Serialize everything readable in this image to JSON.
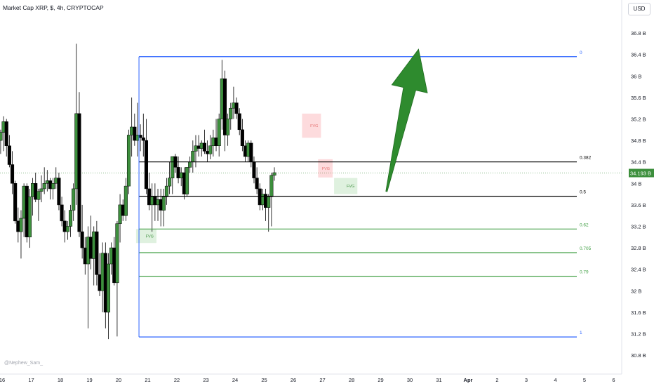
{
  "header": {
    "title": "Market Cap XRP, $, 4h, CRYPTOCAP",
    "currency": "USD"
  },
  "watermark": "@Nephew_Sam_",
  "chart_data": {
    "type": "candlestick",
    "ylim": [
      30.6,
      37.1
    ],
    "yticks": [
      "36.8 B",
      "36.4 B",
      "36 B",
      "35.6 B",
      "35.2 B",
      "34.8 B",
      "34.4 B",
      "34 B",
      "33.6 B",
      "33.2 B",
      "32.8 B",
      "32.4 B",
      "32 B",
      "31.6 B",
      "31.2 B",
      "30.8 B"
    ],
    "ytick_values": [
      36.8,
      36.4,
      36.0,
      35.6,
      35.2,
      34.8,
      34.4,
      34.0,
      33.6,
      33.2,
      32.8,
      32.4,
      32.0,
      31.6,
      31.2,
      30.8
    ],
    "xticks": [
      "16",
      "17",
      "18",
      "19",
      "20",
      "21",
      "22",
      "23",
      "24",
      "25",
      "26",
      "27",
      "28",
      "29",
      "30",
      "31",
      "Apr",
      "2",
      "3",
      "4",
      "5",
      "6"
    ],
    "last_price": {
      "label": "34.193 B",
      "value": 34.193
    },
    "fib_levels": [
      {
        "label": "0",
        "value": 36.36,
        "color": "#2962ff"
      },
      {
        "label": "0.382",
        "value": 34.4,
        "color": "#000000"
      },
      {
        "label": "0.5",
        "value": 33.76,
        "color": "#000000"
      },
      {
        "label": "0.62",
        "value": 33.15,
        "color": "#43a047"
      },
      {
        "label": "0.705",
        "value": 32.71,
        "color": "#43a047"
      },
      {
        "label": "0.79",
        "value": 32.27,
        "color": "#43a047"
      },
      {
        "label": "1",
        "value": 31.14,
        "color": "#2962ff"
      }
    ],
    "fvg_zones": [
      {
        "label": "FVG",
        "x0": 20.6,
        "x1": 21.3,
        "y0": 32.89,
        "y1": 33.15,
        "type": "bullish"
      },
      {
        "label": "FVG",
        "x0": 26.3,
        "x1": 26.95,
        "y0": 34.85,
        "y1": 35.3,
        "type": "bearish"
      },
      {
        "label": "FVG",
        "x0": 26.85,
        "x1": 27.35,
        "y0": 34.11,
        "y1": 34.45,
        "type": "bearish"
      },
      {
        "label": "FVG",
        "x0": 27.4,
        "x1": 28.2,
        "y0": 33.8,
        "y1": 34.1,
        "type": "bullish"
      }
    ],
    "arrow": {
      "from": [
        29.2,
        33.85
      ],
      "to": [
        30.3,
        36.5
      ],
      "color": "#2e8b2e"
    },
    "colors": {
      "up": "#3d8f3d",
      "down": "#000000",
      "wick": "#000000"
    },
    "candles": [
      [
        15.85,
        35.1,
        35.35,
        34.7,
        34.8
      ],
      [
        15.95,
        34.8,
        35.0,
        34.55,
        34.95
      ],
      [
        16.05,
        34.95,
        35.25,
        34.6,
        35.15
      ],
      [
        16.15,
        35.15,
        35.2,
        34.5,
        34.7
      ],
      [
        16.25,
        34.7,
        34.9,
        34.3,
        34.35
      ],
      [
        16.35,
        34.35,
        34.6,
        33.8,
        34.0
      ],
      [
        16.45,
        34.0,
        34.05,
        33.25,
        33.3
      ],
      [
        16.55,
        33.3,
        33.55,
        32.9,
        33.1
      ],
      [
        16.65,
        33.1,
        33.5,
        32.6,
        33.35
      ],
      [
        16.75,
        33.35,
        34.0,
        33.0,
        33.95
      ],
      [
        16.85,
        33.95,
        34.0,
        32.9,
        33.0
      ],
      [
        16.95,
        33.0,
        33.9,
        32.8,
        33.75
      ],
      [
        17.05,
        33.75,
        34.1,
        33.4,
        34.0
      ],
      [
        17.15,
        34.0,
        34.2,
        33.65,
        33.7
      ],
      [
        17.25,
        33.7,
        33.9,
        33.3,
        33.85
      ],
      [
        17.35,
        33.85,
        34.15,
        33.65,
        33.9
      ],
      [
        17.45,
        33.9,
        34.3,
        33.8,
        34.0
      ],
      [
        17.55,
        34.0,
        34.25,
        33.85,
        34.05
      ],
      [
        17.65,
        34.05,
        34.1,
        33.7,
        33.9
      ],
      [
        17.75,
        33.9,
        34.1,
        33.7,
        34.0
      ],
      [
        17.85,
        34.0,
        34.3,
        33.9,
        34.1
      ],
      [
        17.95,
        34.1,
        34.2,
        33.5,
        33.6
      ],
      [
        18.05,
        33.6,
        33.75,
        33.2,
        33.3
      ],
      [
        18.15,
        33.3,
        33.5,
        32.9,
        33.1
      ],
      [
        18.25,
        33.1,
        33.3,
        32.95,
        33.2
      ],
      [
        18.35,
        33.2,
        33.6,
        33.0,
        33.5
      ],
      [
        18.45,
        33.5,
        34.0,
        33.3,
        33.9
      ],
      [
        18.55,
        33.9,
        36.6,
        33.6,
        35.3
      ],
      [
        18.65,
        35.3,
        35.7,
        33.0,
        33.1
      ],
      [
        18.75,
        33.1,
        33.6,
        32.6,
        32.8
      ],
      [
        18.85,
        32.8,
        33.0,
        32.3,
        32.5
      ],
      [
        18.95,
        32.5,
        33.2,
        31.3,
        33.0
      ],
      [
        19.05,
        33.0,
        33.4,
        32.4,
        32.6
      ],
      [
        19.15,
        32.6,
        33.2,
        32.1,
        33.1
      ],
      [
        19.25,
        33.1,
        33.3,
        32.1,
        32.3
      ],
      [
        19.35,
        32.3,
        32.7,
        31.9,
        32.0
      ],
      [
        19.45,
        32.0,
        32.9,
        31.6,
        32.7
      ],
      [
        19.55,
        32.7,
        32.9,
        31.3,
        31.6
      ],
      [
        19.65,
        31.6,
        32.7,
        31.1,
        32.5
      ],
      [
        19.75,
        32.5,
        32.9,
        32.3,
        32.8
      ],
      [
        19.85,
        32.8,
        33.0,
        32.1,
        32.15
      ],
      [
        19.95,
        32.15,
        33.3,
        31.15,
        33.25
      ],
      [
        20.05,
        33.25,
        33.8,
        32.9,
        33.6
      ],
      [
        20.15,
        33.6,
        33.7,
        33.3,
        33.4
      ],
      [
        20.25,
        33.4,
        34.1,
        33.3,
        33.95
      ],
      [
        20.35,
        33.95,
        35.0,
        33.8,
        34.9
      ],
      [
        20.45,
        34.9,
        35.6,
        34.5,
        35.05
      ],
      [
        20.55,
        35.05,
        35.3,
        34.7,
        34.8
      ],
      [
        20.65,
        34.8,
        35.5,
        34.5,
        34.9
      ],
      [
        20.75,
        34.9,
        35.1,
        34.6,
        34.85
      ],
      [
        20.85,
        34.85,
        35.3,
        34.5,
        34.8
      ],
      [
        20.95,
        34.8,
        35.2,
        33.8,
        33.9
      ],
      [
        21.05,
        33.9,
        34.2,
        33.5,
        33.6
      ],
      [
        21.15,
        33.6,
        34.0,
        33.1,
        33.75
      ],
      [
        21.25,
        33.75,
        34.0,
        33.3,
        33.6
      ],
      [
        21.35,
        33.6,
        33.9,
        33.3,
        33.7
      ],
      [
        21.45,
        33.7,
        33.9,
        33.2,
        33.5
      ],
      [
        21.55,
        33.5,
        33.9,
        33.2,
        33.75
      ],
      [
        21.65,
        33.75,
        34.1,
        33.6,
        33.95
      ],
      [
        21.75,
        33.95,
        34.4,
        33.8,
        34.1
      ],
      [
        21.85,
        34.1,
        34.5,
        33.8,
        34.5
      ],
      [
        21.95,
        34.5,
        34.55,
        34.2,
        34.3
      ],
      [
        22.05,
        34.3,
        34.5,
        34.0,
        34.1
      ],
      [
        22.15,
        34.1,
        34.3,
        33.95,
        34.2
      ],
      [
        22.25,
        34.2,
        34.3,
        33.7,
        33.8
      ],
      [
        22.35,
        33.8,
        34.3,
        33.75,
        34.3
      ],
      [
        22.45,
        34.3,
        34.5,
        34.2,
        34.4
      ],
      [
        22.55,
        34.4,
        34.8,
        34.2,
        34.6
      ],
      [
        22.65,
        34.6,
        34.9,
        34.3,
        34.7
      ],
      [
        22.75,
        34.7,
        34.9,
        34.5,
        34.65
      ],
      [
        22.85,
        34.65,
        34.8,
        34.5,
        34.75
      ],
      [
        22.95,
        34.75,
        35.0,
        34.55,
        34.6
      ],
      [
        23.05,
        34.6,
        34.8,
        34.4,
        34.55
      ],
      [
        23.15,
        34.55,
        34.9,
        34.45,
        34.7
      ],
      [
        23.25,
        34.7,
        35.0,
        34.5,
        34.85
      ],
      [
        23.35,
        34.85,
        35.2,
        34.6,
        34.7
      ],
      [
        23.45,
        34.7,
        35.3,
        34.5,
        35.2
      ],
      [
        23.55,
        35.2,
        36.3,
        35.0,
        35.95
      ],
      [
        23.65,
        35.95,
        36.1,
        34.6,
        34.9
      ],
      [
        23.75,
        34.9,
        35.3,
        34.7,
        35.2
      ],
      [
        23.85,
        35.2,
        35.5,
        35.0,
        35.4
      ],
      [
        23.95,
        35.4,
        35.8,
        35.2,
        35.5
      ],
      [
        24.05,
        35.5,
        35.6,
        35.2,
        35.3
      ],
      [
        24.15,
        35.3,
        35.4,
        34.9,
        35.0
      ],
      [
        24.25,
        35.0,
        35.2,
        34.6,
        34.7
      ],
      [
        24.35,
        34.7,
        34.8,
        34.4,
        34.5
      ],
      [
        24.45,
        34.5,
        34.8,
        34.4,
        34.75
      ],
      [
        24.55,
        34.75,
        34.8,
        34.3,
        34.4
      ],
      [
        24.65,
        34.4,
        34.5,
        34.0,
        34.1
      ],
      [
        24.75,
        34.1,
        34.3,
        33.8,
        33.9
      ],
      [
        24.85,
        33.9,
        34.0,
        33.5,
        33.6
      ],
      [
        24.95,
        33.6,
        33.9,
        33.5,
        33.8
      ],
      [
        25.05,
        33.8,
        33.9,
        33.3,
        33.55
      ],
      [
        25.15,
        33.55,
        33.8,
        33.1,
        33.75
      ],
      [
        25.25,
        33.75,
        34.2,
        33.2,
        34.15
      ],
      [
        25.35,
        34.15,
        34.3,
        34.05,
        34.2
      ]
    ]
  }
}
